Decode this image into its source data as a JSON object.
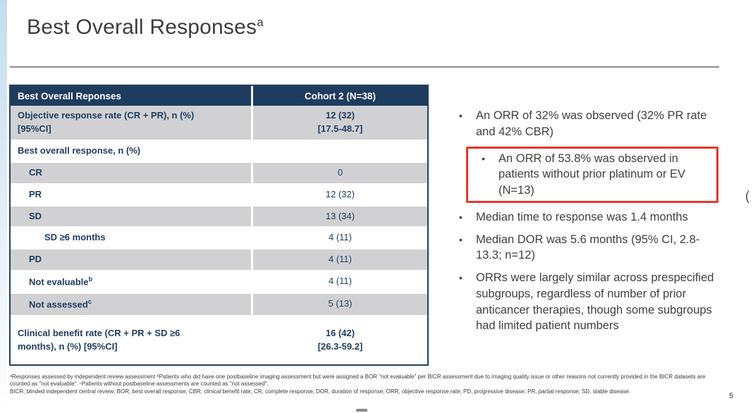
{
  "slide": {
    "title": "Best Overall Responses",
    "title_sup": "a",
    "page_number": "5",
    "edge_glyph": "("
  },
  "table": {
    "header": {
      "col1": "Best Overall Reponses",
      "col2": "Cohort 2 (N=38)"
    },
    "rows": [
      {
        "label": "Objective response rate (CR + PR), n (%)",
        "label2": "[95%CI]",
        "sup": "",
        "value": "12 (32)",
        "value2": "[17.5-48.7]",
        "indent": 0,
        "bold_value": true
      },
      {
        "label": "Best overall response, n (%)",
        "sup": "",
        "value": "",
        "indent": 0,
        "bold_value": false
      },
      {
        "label": "CR",
        "sup": "",
        "value": "0",
        "indent": 1,
        "bold_value": false
      },
      {
        "label": "PR",
        "sup": "",
        "value": "12 (32)",
        "indent": 1,
        "bold_value": false
      },
      {
        "label": "SD",
        "sup": "",
        "value": "13 (34)",
        "indent": 1,
        "bold_value": false
      },
      {
        "label": "SD ≥6 months",
        "sup": "",
        "value": "4 (11)",
        "indent": 2,
        "bold_value": false
      },
      {
        "label": "PD",
        "sup": "",
        "value": "4 (11)",
        "indent": 1,
        "bold_value": false
      },
      {
        "label": "Not evaluable",
        "sup": "b",
        "value": "4 (11)",
        "indent": 1,
        "bold_value": false
      },
      {
        "label": "Not assessed",
        "sup": "c",
        "value": "5 (13)",
        "indent": 1,
        "bold_value": false
      },
      {
        "label": "Clinical benefit rate (CR + PR + SD ≥6",
        "label2": "months), n (%) [95%CI]",
        "sup": "",
        "value": "16 (42)",
        "value2": "[26.3-59.2]",
        "indent": 0,
        "bold_value": true
      }
    ]
  },
  "bullets": [
    {
      "text": "An ORR of 32% was observed (32% PR rate and 42% CBR)",
      "level": 1,
      "boxed": false
    },
    {
      "text": "An ORR of 53.8% was observed in patients without prior platinum or EV (N=13)",
      "level": 2,
      "boxed": true
    },
    {
      "text": "Median time to response was 1.4 months",
      "level": 1,
      "boxed": false
    },
    {
      "text": "Median DOR was 5.6 months (95% CI, 2.8-13.3; n=12)",
      "level": 1,
      "boxed": false
    },
    {
      "text": "ORRs were largely similar across prespecified subgroups, regardless of number of prior anticancer therapies, though some subgroups had limited patient numbers",
      "level": 1,
      "boxed": false
    }
  ],
  "footnotes": {
    "line1": "ᵃResponses assessed by independent review assessment ᵇPatients who did have one postbaseline imaging assessment but were assigned a BOR \"not evaluable\" per BICR assessment due to imaging quality issue or other reasons not currently provided in the BICR datasets are counted as \"not evaluable\". ᶜPatients without postbaseline assessments are counted as \"not assessed\".",
    "abbreviations": "BICR, blinded independent central review; BOR, best overall response; CBR, clinical benefit rate; CR, complete response; DOR, duration of response; ORR, objective response rate; PD, progressive disease; PR, partial response; SD, stable disease."
  },
  "colors": {
    "header_bg": "#1e3c5f",
    "row_shade": "#d1d1d3",
    "navy_text": "#1e3c5f",
    "highlight_border": "#e8352b",
    "body_text": "#3f3f3f"
  }
}
